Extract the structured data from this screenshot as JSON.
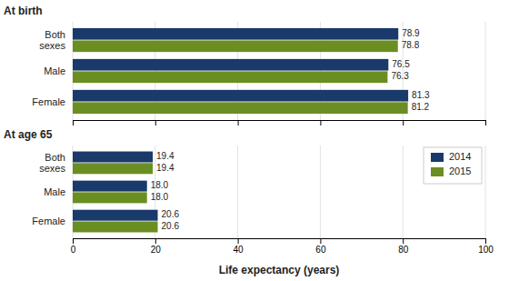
{
  "chart_data": [
    {
      "type": "bar",
      "orientation": "horizontal",
      "title": "At birth",
      "categories": [
        "Both\nsexes",
        "Male",
        "Female"
      ],
      "series": [
        {
          "name": "2014",
          "color": "#1a3a6b",
          "values": [
            78.9,
            76.5,
            81.3
          ]
        },
        {
          "name": "2015",
          "color": "#6b8e23",
          "values": [
            78.8,
            76.3,
            81.2
          ]
        }
      ],
      "xlim": [
        0,
        100
      ],
      "xticks": [
        0,
        20,
        40,
        60,
        80,
        100
      ],
      "grid": true,
      "data_labels": true,
      "tick_labels": "y"
    },
    {
      "type": "bar",
      "orientation": "horizontal",
      "title": "At age 65",
      "xlabel": "Life expectancy (years)",
      "categories": [
        "Both\nsexes",
        "Male",
        "Female"
      ],
      "series": [
        {
          "name": "2014",
          "color": "#1a3a6b",
          "values": [
            19.4,
            18.0,
            20.6
          ],
          "value_labels": [
            "19.4",
            "18.0",
            "20.6"
          ]
        },
        {
          "name": "2015",
          "color": "#6b8e23",
          "values": [
            19.4,
            18.0,
            20.6
          ],
          "value_labels": [
            "19.4",
            "18.0",
            "20.6"
          ]
        }
      ],
      "xlim": [
        0,
        100
      ],
      "xticks": [
        0,
        20,
        40,
        60,
        80,
        100
      ],
      "grid": true,
      "data_labels": true,
      "legend": "upper right"
    }
  ]
}
